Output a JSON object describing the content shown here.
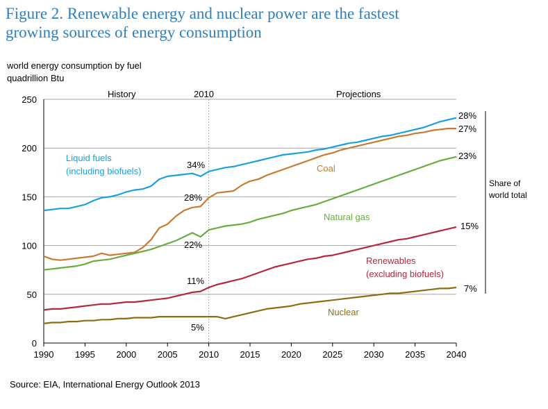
{
  "title_lines": [
    "Figure 2. Renewable energy and nuclear power are the fastest",
    "growing sources of energy consumption"
  ],
  "source": "Source:  EIA, International Energy Outlook 2013",
  "chart_data": {
    "type": "line",
    "title": "Figure 2. Renewable energy and nuclear power are the fastest growing sources of energy consumption",
    "ylabel_lines": [
      "world energy consumption by fuel",
      "quadrillion Btu"
    ],
    "xlabel": "",
    "xlim": [
      1990,
      2040
    ],
    "ylim": [
      0,
      250
    ],
    "x_ticks": [
      1990,
      1995,
      2000,
      2005,
      2010,
      2015,
      2020,
      2025,
      2030,
      2035,
      2040
    ],
    "y_ticks": [
      0,
      50,
      100,
      150,
      200,
      250
    ],
    "grid": "horizontal",
    "divider_x": 2010,
    "annotations": {
      "history": "History",
      "year": "2010",
      "projections": "Projections",
      "share_lines": [
        "Share of",
        "world total"
      ]
    },
    "colors": {
      "liquid": "#1aa0e0",
      "coal": "#c87a32",
      "gas": "#6aac3c",
      "renewables": "#b5283c",
      "nuclear": "#8c6e12"
    },
    "series": [
      {
        "key": "liquid",
        "label_lines": [
          "Liquid fuels",
          "(including biofuels)"
        ],
        "x": [
          1990,
          1991,
          1992,
          1993,
          1994,
          1995,
          1996,
          1997,
          1998,
          1999,
          2000,
          2001,
          2002,
          2003,
          2004,
          2005,
          2006,
          2007,
          2008,
          2009,
          2010,
          2011,
          2012,
          2013,
          2014,
          2015,
          2016,
          2017,
          2018,
          2019,
          2020,
          2021,
          2022,
          2023,
          2024,
          2025,
          2026,
          2027,
          2028,
          2029,
          2030,
          2031,
          2032,
          2033,
          2034,
          2035,
          2036,
          2037,
          2038,
          2039,
          2040
        ],
        "y": [
          136,
          137,
          138,
          138,
          140,
          142,
          146,
          149,
          150,
          152,
          155,
          157,
          158,
          161,
          168,
          171,
          172,
          173,
          174,
          171,
          176,
          178,
          180,
          181,
          183,
          185,
          187,
          189,
          191,
          193,
          194,
          195,
          196,
          198,
          199,
          201,
          203,
          205,
          206,
          208,
          210,
          212,
          213,
          215,
          217,
          219,
          221,
          224,
          227,
          229,
          231
        ],
        "share_2010": "34%",
        "share_2040": "28%"
      },
      {
        "key": "coal",
        "label_lines": [
          "Coal"
        ],
        "x": [
          1990,
          1991,
          1992,
          1993,
          1994,
          1995,
          1996,
          1997,
          1998,
          1999,
          2000,
          2001,
          2002,
          2003,
          2004,
          2005,
          2006,
          2007,
          2008,
          2009,
          2010,
          2011,
          2012,
          2013,
          2014,
          2015,
          2016,
          2017,
          2018,
          2019,
          2020,
          2021,
          2022,
          2023,
          2024,
          2025,
          2026,
          2027,
          2028,
          2029,
          2030,
          2031,
          2032,
          2033,
          2034,
          2035,
          2036,
          2037,
          2038,
          2039,
          2040
        ],
        "y": [
          89,
          86,
          85,
          86,
          87,
          88,
          89,
          92,
          90,
          91,
          92,
          93,
          98,
          106,
          118,
          122,
          130,
          136,
          139,
          140,
          149,
          154,
          155,
          156,
          162,
          166,
          168,
          172,
          175,
          178,
          181,
          184,
          187,
          190,
          193,
          195,
          198,
          200,
          202,
          204,
          206,
          208,
          210,
          212,
          213,
          215,
          216,
          218,
          219,
          220,
          220
        ],
        "share_2010": "28%",
        "share_2040": "27%"
      },
      {
        "key": "gas",
        "label_lines": [
          "Natural gas"
        ],
        "x": [
          1990,
          1991,
          1992,
          1993,
          1994,
          1995,
          1996,
          1997,
          1998,
          1999,
          2000,
          2001,
          2002,
          2003,
          2004,
          2005,
          2006,
          2007,
          2008,
          2009,
          2010,
          2011,
          2012,
          2013,
          2014,
          2015,
          2016,
          2017,
          2018,
          2019,
          2020,
          2021,
          2022,
          2023,
          2024,
          2025,
          2026,
          2027,
          2028,
          2029,
          2030,
          2031,
          2032,
          2033,
          2034,
          2035,
          2036,
          2037,
          2038,
          2039,
          2040
        ],
        "y": [
          75,
          76,
          77,
          78,
          79,
          81,
          84,
          85,
          86,
          88,
          90,
          92,
          94,
          96,
          99,
          102,
          105,
          109,
          113,
          109,
          116,
          118,
          120,
          121,
          122,
          124,
          127,
          129,
          131,
          133,
          136,
          138,
          140,
          142,
          145,
          148,
          151,
          154,
          157,
          160,
          163,
          166,
          169,
          172,
          175,
          178,
          181,
          184,
          187,
          189,
          191
        ],
        "share_2010": "22%",
        "share_2040": "23%"
      },
      {
        "key": "renewables",
        "label_lines": [
          "Renewables",
          "(excluding biofuels)"
        ],
        "x": [
          1990,
          1991,
          1992,
          1993,
          1994,
          1995,
          1996,
          1997,
          1998,
          1999,
          2000,
          2001,
          2002,
          2003,
          2004,
          2005,
          2006,
          2007,
          2008,
          2009,
          2010,
          2011,
          2012,
          2013,
          2014,
          2015,
          2016,
          2017,
          2018,
          2019,
          2020,
          2021,
          2022,
          2023,
          2024,
          2025,
          2026,
          2027,
          2028,
          2029,
          2030,
          2031,
          2032,
          2033,
          2034,
          2035,
          2036,
          2037,
          2038,
          2039,
          2040
        ],
        "y": [
          34,
          35,
          35,
          36,
          37,
          38,
          39,
          40,
          40,
          41,
          42,
          42,
          43,
          44,
          45,
          46,
          48,
          50,
          52,
          53,
          57,
          60,
          62,
          64,
          66,
          69,
          72,
          75,
          78,
          80,
          82,
          84,
          86,
          87,
          89,
          90,
          92,
          94,
          96,
          98,
          100,
          102,
          104,
          106,
          107,
          109,
          111,
          113,
          115,
          117,
          119
        ],
        "share_2010": "11%",
        "share_2040": "15%"
      },
      {
        "key": "nuclear",
        "label_lines": [
          "Nuclear"
        ],
        "x": [
          1990,
          1991,
          1992,
          1993,
          1994,
          1995,
          1996,
          1997,
          1998,
          1999,
          2000,
          2001,
          2002,
          2003,
          2004,
          2005,
          2006,
          2007,
          2008,
          2009,
          2010,
          2011,
          2012,
          2013,
          2014,
          2015,
          2016,
          2017,
          2018,
          2019,
          2020,
          2021,
          2022,
          2023,
          2024,
          2025,
          2026,
          2027,
          2028,
          2029,
          2030,
          2031,
          2032,
          2033,
          2034,
          2035,
          2036,
          2037,
          2038,
          2039,
          2040
        ],
        "y": [
          20,
          21,
          21,
          22,
          22,
          23,
          23,
          24,
          24,
          25,
          25,
          26,
          26,
          26,
          27,
          27,
          27,
          27,
          27,
          27,
          27,
          27,
          25,
          27,
          29,
          31,
          33,
          35,
          36,
          37,
          38,
          40,
          41,
          42,
          43,
          44,
          45,
          46,
          47,
          48,
          49,
          50,
          51,
          51,
          52,
          53,
          54,
          55,
          56,
          56,
          57
        ],
        "share_2010": "5%",
        "share_2040": "7%"
      }
    ]
  }
}
